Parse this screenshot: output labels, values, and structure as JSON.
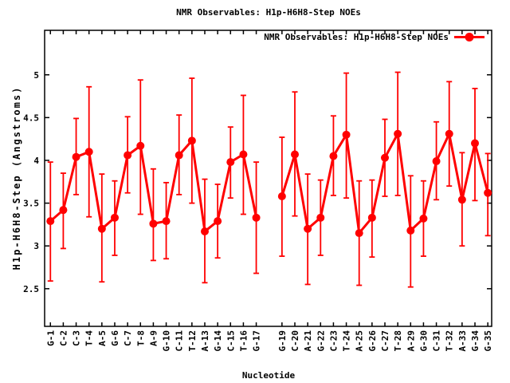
{
  "page": {
    "background": "#ffffff"
  },
  "colors": {
    "series": "#ff0000",
    "axis": "#000000",
    "text": "#000000",
    "background": "#ffffff"
  },
  "chart_data": {
    "type": "line",
    "title": "NMR Observables: H1p-H6H8-Step NOEs",
    "xlabel": "Nucleotide",
    "ylabel": "H1p-H6H8-Step (Angstroms)",
    "legend": {
      "label": "NMR Observables: H1p-H6H8-Step NOEs",
      "position": "top-right-inside",
      "marker": "filled-circle-on-line",
      "color": "#ff0000"
    },
    "grid": false,
    "error_bars": true,
    "marker": "filled-circle",
    "series_color": "#ff0000",
    "xlim": [
      0.55,
      35.3
    ],
    "ylim": [
      2.06,
      5.52
    ],
    "yticks": [
      2.5,
      3,
      3.5,
      4,
      4.5,
      5
    ],
    "ytick_labels": [
      "2.5",
      "3",
      "3.5",
      "4",
      "4.5",
      "5"
    ],
    "xtick_label_rotation": -90,
    "line_gap_between": [
      "G-17",
      "G-19"
    ],
    "points": [
      {
        "label": "G-1",
        "pos": 1,
        "y": 3.29,
        "err_lo": 2.59,
        "err_hi": 3.98
      },
      {
        "label": "C-2",
        "pos": 2,
        "y": 3.42,
        "err_lo": 2.97,
        "err_hi": 3.85
      },
      {
        "label": "C-3",
        "pos": 3,
        "y": 4.04,
        "err_lo": 3.6,
        "err_hi": 4.49
      },
      {
        "label": "T-4",
        "pos": 4,
        "y": 4.1,
        "err_lo": 3.34,
        "err_hi": 4.86
      },
      {
        "label": "A-5",
        "pos": 5,
        "y": 3.2,
        "err_lo": 2.58,
        "err_hi": 3.84
      },
      {
        "label": "G-6",
        "pos": 6,
        "y": 3.33,
        "err_lo": 2.89,
        "err_hi": 3.76
      },
      {
        "label": "C-7",
        "pos": 7,
        "y": 4.06,
        "err_lo": 3.62,
        "err_hi": 4.51
      },
      {
        "label": "T-8",
        "pos": 8,
        "y": 4.17,
        "err_lo": 3.37,
        "err_hi": 4.94
      },
      {
        "label": "A-9",
        "pos": 9,
        "y": 3.26,
        "err_lo": 2.83,
        "err_hi": 3.9
      },
      {
        "label": "G-10",
        "pos": 10,
        "y": 3.29,
        "err_lo": 2.85,
        "err_hi": 3.74
      },
      {
        "label": "C-11",
        "pos": 11,
        "y": 4.06,
        "err_lo": 3.6,
        "err_hi": 4.53
      },
      {
        "label": "T-12",
        "pos": 12,
        "y": 4.23,
        "err_lo": 3.5,
        "err_hi": 4.96
      },
      {
        "label": "A-13",
        "pos": 13,
        "y": 3.17,
        "err_lo": 2.57,
        "err_hi": 3.78
      },
      {
        "label": "G-14",
        "pos": 14,
        "y": 3.29,
        "err_lo": 2.86,
        "err_hi": 3.72
      },
      {
        "label": "C-15",
        "pos": 15,
        "y": 3.98,
        "err_lo": 3.56,
        "err_hi": 4.39
      },
      {
        "label": "T-16",
        "pos": 16,
        "y": 4.07,
        "err_lo": 3.37,
        "err_hi": 4.76
      },
      {
        "label": "G-17",
        "pos": 17,
        "y": 3.33,
        "err_lo": 2.68,
        "err_hi": 3.98
      },
      {
        "label": "G-19",
        "pos": 19,
        "y": 3.58,
        "err_lo": 2.88,
        "err_hi": 4.27
      },
      {
        "label": "C-20",
        "pos": 20,
        "y": 4.07,
        "err_lo": 3.35,
        "err_hi": 4.8
      },
      {
        "label": "A-21",
        "pos": 21,
        "y": 3.2,
        "err_lo": 2.55,
        "err_hi": 3.84
      },
      {
        "label": "G-22",
        "pos": 22,
        "y": 3.33,
        "err_lo": 2.89,
        "err_hi": 3.77
      },
      {
        "label": "C-23",
        "pos": 23,
        "y": 4.05,
        "err_lo": 3.59,
        "err_hi": 4.52
      },
      {
        "label": "T-24",
        "pos": 24,
        "y": 4.3,
        "err_lo": 3.56,
        "err_hi": 5.02
      },
      {
        "label": "A-25",
        "pos": 25,
        "y": 3.15,
        "err_lo": 2.54,
        "err_hi": 3.76
      },
      {
        "label": "G-26",
        "pos": 26,
        "y": 3.33,
        "err_lo": 2.87,
        "err_hi": 3.77
      },
      {
        "label": "C-27",
        "pos": 27,
        "y": 4.03,
        "err_lo": 3.58,
        "err_hi": 4.48
      },
      {
        "label": "T-28",
        "pos": 28,
        "y": 4.31,
        "err_lo": 3.59,
        "err_hi": 5.03
      },
      {
        "label": "A-29",
        "pos": 29,
        "y": 3.18,
        "err_lo": 2.52,
        "err_hi": 3.82
      },
      {
        "label": "G-30",
        "pos": 30,
        "y": 3.32,
        "err_lo": 2.88,
        "err_hi": 3.76
      },
      {
        "label": "C-31",
        "pos": 31,
        "y": 3.99,
        "err_lo": 3.54,
        "err_hi": 4.45
      },
      {
        "label": "T-32",
        "pos": 32,
        "y": 4.31,
        "err_lo": 3.7,
        "err_hi": 4.92
      },
      {
        "label": "A-33",
        "pos": 33,
        "y": 3.54,
        "err_lo": 3.0,
        "err_hi": 4.09
      },
      {
        "label": "G-34",
        "pos": 34,
        "y": 4.2,
        "err_lo": 3.53,
        "err_hi": 4.84
      },
      {
        "label": "G-35",
        "pos": 35,
        "y": 3.62,
        "err_lo": 3.12,
        "err_hi": 4.08
      }
    ]
  }
}
